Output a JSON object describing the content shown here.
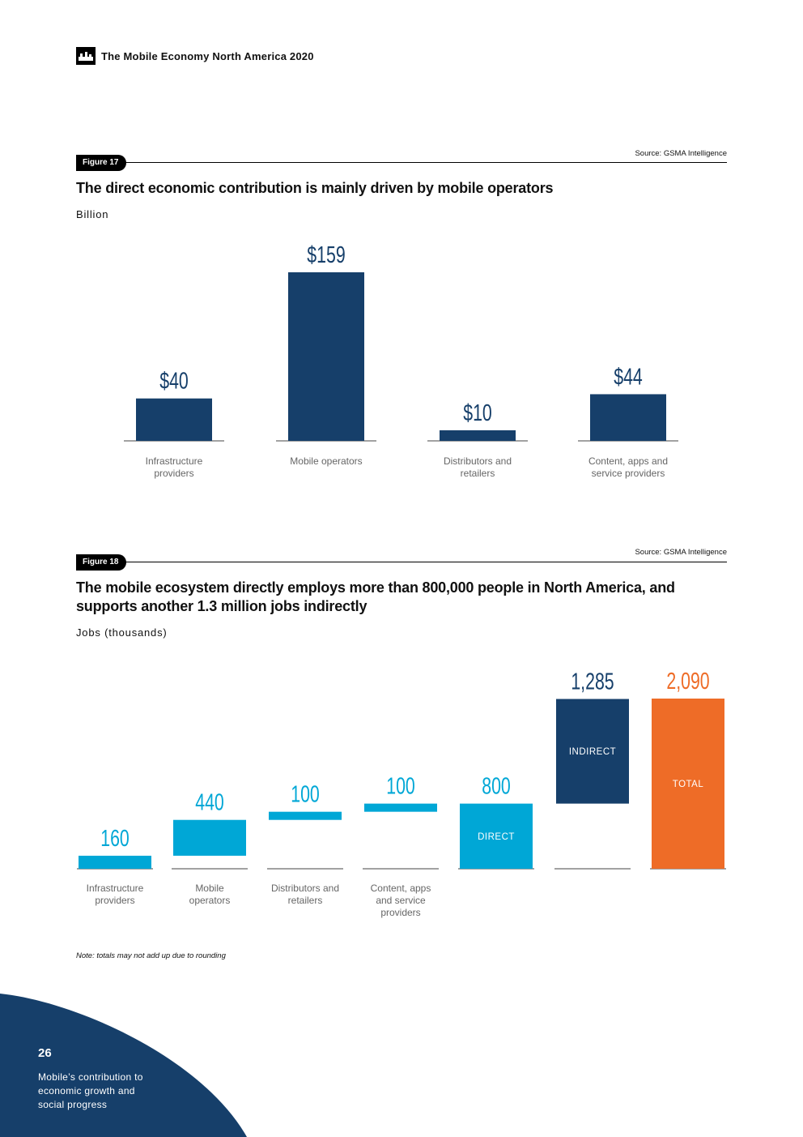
{
  "header": {
    "title": "The Mobile Economy North America 2020",
    "icon": "gsma-logo-icon"
  },
  "colors": {
    "navy": "#163F6A",
    "cyan": "#00A7D6",
    "orange": "#EE6C27",
    "axis": "#444444",
    "label": "#666666"
  },
  "figure17": {
    "tag": "Figure 17",
    "source": "Source: GSMA Intelligence",
    "title": "The direct economic contribution is mainly driven by mobile operators",
    "unit": "Billion"
  },
  "figure18": {
    "tag": "Figure 18",
    "source": "Source: GSMA Intelligence",
    "title": "The mobile ecosystem directly employs more than 800,000 people in North America, and supports another 1.3 million jobs indirectly",
    "unit": "Jobs (thousands)"
  },
  "note": "Note: totals may not add up due to rounding",
  "footer": {
    "page_number": "26",
    "section_title": "Mobile’s contribution to economic growth and social progress"
  },
  "chart_data": [
    {
      "type": "bar",
      "title": "The direct economic contribution is mainly driven by mobile operators",
      "ylabel": "Billion",
      "categories": [
        [
          "Infrastructure",
          "providers"
        ],
        [
          "Mobile operators"
        ],
        [
          "Distributors and",
          "retailers"
        ],
        [
          "Content, apps and",
          "service providers"
        ]
      ],
      "values": [
        40,
        159,
        10,
        44
      ],
      "value_labels": [
        "$40",
        "$159",
        "$10",
        "$44"
      ],
      "ylim": [
        0,
        159
      ]
    },
    {
      "type": "waterfall",
      "title": "The mobile ecosystem directly employs more than 800,000 people in North America, and supports another 1.3 million jobs indirectly",
      "ylabel": "Jobs (thousands)",
      "ylim": [
        0,
        2090
      ],
      "bars": [
        {
          "category": [
            "Infrastructure",
            "providers"
          ],
          "start": 0,
          "end": 160,
          "label": "160",
          "color": "cyan",
          "inner_label": ""
        },
        {
          "category": [
            "Mobile",
            "operators"
          ],
          "start": 160,
          "end": 600,
          "label": "440",
          "color": "cyan",
          "inner_label": ""
        },
        {
          "category": [
            "Distributors and",
            "retailers"
          ],
          "start": 600,
          "end": 700,
          "label": "100",
          "color": "cyan",
          "inner_label": ""
        },
        {
          "category": [
            "Content, apps",
            "and service",
            "providers"
          ],
          "start": 700,
          "end": 800,
          "label": "100",
          "color": "cyan",
          "inner_label": ""
        },
        {
          "category": [],
          "start": 0,
          "end": 800,
          "label": "800",
          "color": "cyan",
          "inner_label": "DIRECT"
        },
        {
          "category": [],
          "start": 800,
          "end": 2085,
          "label": "1,285",
          "color": "navy",
          "inner_label": "INDIRECT"
        },
        {
          "category": [],
          "start": 0,
          "end": 2090,
          "label": "2,090",
          "color": "orange",
          "inner_label": "TOTAL"
        }
      ]
    }
  ]
}
